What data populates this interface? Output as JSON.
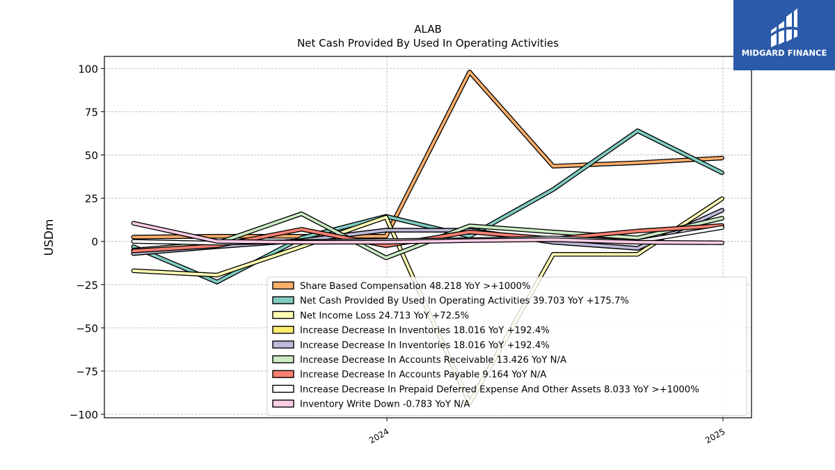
{
  "brand": {
    "name": "MIDGARD FINANCE",
    "bg_color": "#2b5aa8"
  },
  "chart_data": {
    "type": "line",
    "title": "ALAB",
    "subtitle": "Net Cash Provided By Used In Operating Activities",
    "ylabel": "USDm",
    "xlabel": "",
    "ylim": [
      -102,
      107
    ],
    "yticks": [
      100,
      75,
      50,
      25,
      0,
      -25,
      -50,
      -75,
      -100
    ],
    "ytick_labels": [
      "100",
      "75",
      "50",
      "25",
      "0",
      "−25",
      "−50",
      "−75",
      "−100"
    ],
    "x": [
      "2023-03-31",
      "2023-06-30",
      "2023-09-30",
      "2023-12-31",
      "2024-03-31",
      "2024-06-30",
      "2024-09-30",
      "2024-12-31"
    ],
    "x_ticks": [
      {
        "value": "2024-01-01",
        "label": "2024"
      },
      {
        "value": "2025-01-01",
        "label": "2025"
      }
    ],
    "grid": true,
    "legend_position": "lower-right",
    "series": [
      {
        "name": "Share Based Compensation",
        "legend": "Share Based Compensation  48.218 YoY >+1000%",
        "color": "#fdae6b",
        "values": [
          2.5,
          3.0,
          3.0,
          3.0,
          98.0,
          43.5,
          45.5,
          48.2
        ]
      },
      {
        "name": "Net Cash Provided By Used In Operating Activities",
        "legend": "Net Cash Provided By Used In Operating Activities  39.703 YoY +175.7%",
        "color": "#80cbc0",
        "values": [
          -3.0,
          -23.5,
          2.0,
          14.5,
          3.0,
          30.0,
          64.0,
          39.7
        ]
      },
      {
        "name": "Net Income Loss",
        "legend": "Net Income Loss  24.713 YoY +72.5%",
        "color": "#ffffb3",
        "values": [
          -17.0,
          -19.5,
          -3.0,
          14.0,
          -93.5,
          -7.5,
          -7.5,
          24.7
        ]
      },
      {
        "name": "Increase Decrease In Inventories",
        "legend": "Increase Decrease In Inventories  18.016 YoY +192.4%",
        "color": "#ffed6f",
        "values": [
          -7.0,
          -3.0,
          0.5,
          6.5,
          6.5,
          -0.5,
          -4.0,
          18.0
        ]
      },
      {
        "name": "Increase Decrease In Inventories",
        "legend": "Increase Decrease In Inventories  18.016 YoY +192.4%",
        "color": "#bebada",
        "values": [
          -7.0,
          -3.0,
          0.5,
          6.5,
          6.5,
          -0.5,
          -4.0,
          18.0
        ]
      },
      {
        "name": "Increase Decrease In Accounts Receivable",
        "legend": "Increase Decrease In Accounts Receivable  13.426 YoY N/A",
        "color": "#ccebc5",
        "values": [
          -5.0,
          -1.0,
          16.0,
          -9.5,
          9.0,
          5.5,
          2.0,
          13.4
        ]
      },
      {
        "name": "Increase Decrease In Accounts Payable",
        "legend": "Increase Decrease In Accounts Payable  9.164 YoY N/A",
        "color": "#fb8072",
        "values": [
          -5.5,
          -2.5,
          7.0,
          -2.5,
          5.5,
          1.5,
          6.0,
          9.2
        ]
      },
      {
        "name": "Increase Decrease In Prepaid Deferred Expense And Other Assets",
        "legend": "Increase Decrease In Prepaid Deferred Expense And Other Assets  8.033 YoY >+1000%",
        "color": "#ffffff",
        "values": [
          0.0,
          -1.0,
          0.0,
          0.5,
          1.0,
          2.0,
          0.0,
          8.0
        ]
      },
      {
        "name": "Inventory Write Down",
        "legend": "Inventory Write Down  -0.783 YoY N/A",
        "color": "#fccde5",
        "values": [
          10.5,
          0.0,
          -0.5,
          -0.5,
          0.5,
          1.0,
          -0.5,
          -0.8
        ]
      }
    ]
  }
}
